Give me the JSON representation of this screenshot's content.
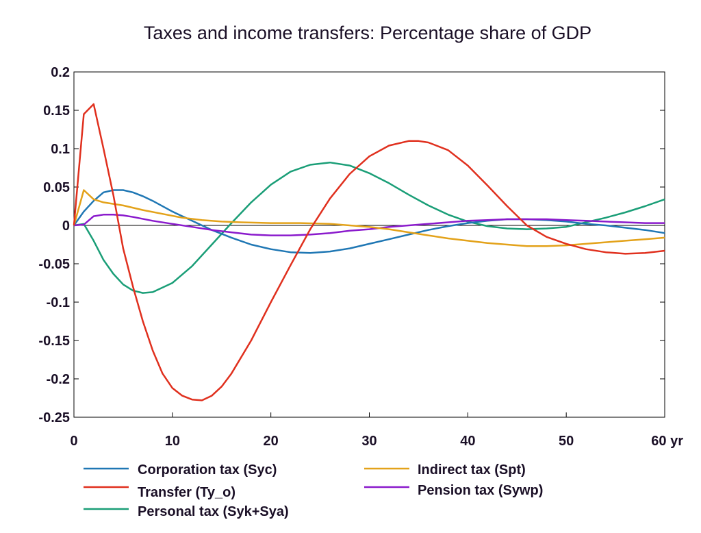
{
  "chart_data": {
    "type": "line",
    "title": "Taxes and income transfers: Percentage share of GDP",
    "xlabel": "",
    "ylabel": "",
    "xlim": [
      0,
      60
    ],
    "ylim": [
      -0.25,
      0.2
    ],
    "x_tick_labels": [
      "0",
      "10",
      "20",
      "30",
      "40",
      "50",
      "60 yr"
    ],
    "y_tick_labels": [
      "0.2",
      "0.15",
      "0.1",
      "0.05",
      "0",
      "-0.05",
      "-0.1",
      "-0.15",
      "-0.2",
      "-0.25"
    ],
    "grid": false,
    "legend_position": "bottom",
    "series": [
      {
        "name": "Corporation tax (Syc)",
        "color": "#1f77b4",
        "points": [
          [
            0,
            0
          ],
          [
            1,
            0.018
          ],
          [
            2,
            0.032
          ],
          [
            3,
            0.043
          ],
          [
            4,
            0.046
          ],
          [
            5,
            0.046
          ],
          [
            6,
            0.043
          ],
          [
            7,
            0.038
          ],
          [
            8,
            0.032
          ],
          [
            10,
            0.018
          ],
          [
            12,
            0.006
          ],
          [
            14,
            -0.006
          ],
          [
            16,
            -0.016
          ],
          [
            18,
            -0.025
          ],
          [
            20,
            -0.031
          ],
          [
            22,
            -0.035
          ],
          [
            24,
            -0.036
          ],
          [
            26,
            -0.034
          ],
          [
            28,
            -0.03
          ],
          [
            30,
            -0.024
          ],
          [
            32,
            -0.018
          ],
          [
            34,
            -0.012
          ],
          [
            36,
            -0.006
          ],
          [
            38,
            -0.001
          ],
          [
            40,
            0.003
          ],
          [
            42,
            0.006
          ],
          [
            44,
            0.008
          ],
          [
            46,
            0.008
          ],
          [
            48,
            0.007
          ],
          [
            50,
            0.005
          ],
          [
            52,
            0.002
          ],
          [
            54,
            0.0
          ],
          [
            56,
            -0.003
          ],
          [
            58,
            -0.006
          ],
          [
            60,
            -0.01
          ]
        ]
      },
      {
        "name": "Transfer (Ty_o)",
        "color": "#e0301e",
        "points": [
          [
            0,
            0
          ],
          [
            1,
            0.145
          ],
          [
            2,
            0.158
          ],
          [
            3,
            0.1
          ],
          [
            4,
            0.04
          ],
          [
            5,
            -0.03
          ],
          [
            6,
            -0.08
          ],
          [
            7,
            -0.125
          ],
          [
            8,
            -0.163
          ],
          [
            9,
            -0.193
          ],
          [
            10,
            -0.212
          ],
          [
            11,
            -0.222
          ],
          [
            12,
            -0.227
          ],
          [
            13,
            -0.228
          ],
          [
            14,
            -0.222
          ],
          [
            15,
            -0.21
          ],
          [
            16,
            -0.193
          ],
          [
            18,
            -0.15
          ],
          [
            20,
            -0.1
          ],
          [
            22,
            -0.052
          ],
          [
            24,
            -0.005
          ],
          [
            26,
            0.035
          ],
          [
            28,
            0.067
          ],
          [
            30,
            0.09
          ],
          [
            32,
            0.104
          ],
          [
            34,
            0.11
          ],
          [
            35,
            0.11
          ],
          [
            36,
            0.108
          ],
          [
            38,
            0.098
          ],
          [
            40,
            0.078
          ],
          [
            42,
            0.052
          ],
          [
            44,
            0.025
          ],
          [
            46,
            0.0
          ],
          [
            48,
            -0.015
          ],
          [
            50,
            -0.024
          ],
          [
            52,
            -0.031
          ],
          [
            54,
            -0.035
          ],
          [
            56,
            -0.037
          ],
          [
            58,
            -0.036
          ],
          [
            60,
            -0.033
          ]
        ]
      },
      {
        "name": "Personal tax (Syk+Sya)",
        "color": "#1a9e77",
        "points": [
          [
            0,
            0
          ],
          [
            1,
            0.002
          ],
          [
            2,
            -0.02
          ],
          [
            3,
            -0.045
          ],
          [
            4,
            -0.063
          ],
          [
            5,
            -0.077
          ],
          [
            6,
            -0.085
          ],
          [
            7,
            -0.088
          ],
          [
            8,
            -0.087
          ],
          [
            10,
            -0.075
          ],
          [
            12,
            -0.053
          ],
          [
            14,
            -0.025
          ],
          [
            16,
            0.003
          ],
          [
            18,
            0.03
          ],
          [
            20,
            0.053
          ],
          [
            22,
            0.07
          ],
          [
            24,
            0.079
          ],
          [
            26,
            0.082
          ],
          [
            28,
            0.078
          ],
          [
            30,
            0.068
          ],
          [
            32,
            0.055
          ],
          [
            34,
            0.04
          ],
          [
            36,
            0.026
          ],
          [
            38,
            0.014
          ],
          [
            40,
            0.005
          ],
          [
            42,
            -0.001
          ],
          [
            44,
            -0.004
          ],
          [
            46,
            -0.005
          ],
          [
            48,
            -0.004
          ],
          [
            50,
            -0.002
          ],
          [
            52,
            0.004
          ],
          [
            54,
            0.01
          ],
          [
            56,
            0.017
          ],
          [
            58,
            0.025
          ],
          [
            60,
            0.034
          ]
        ]
      },
      {
        "name": "Indirect tax (Spt)",
        "color": "#e3a21a",
        "points": [
          [
            0,
            0
          ],
          [
            1,
            0.046
          ],
          [
            2,
            0.034
          ],
          [
            3,
            0.03
          ],
          [
            5,
            0.026
          ],
          [
            7,
            0.02
          ],
          [
            9,
            0.015
          ],
          [
            11,
            0.01
          ],
          [
            13,
            0.007
          ],
          [
            15,
            0.005
          ],
          [
            17,
            0.004
          ],
          [
            20,
            0.003
          ],
          [
            23,
            0.003
          ],
          [
            26,
            0.002
          ],
          [
            28,
            0.0
          ],
          [
            30,
            -0.002
          ],
          [
            32,
            -0.005
          ],
          [
            34,
            -0.009
          ],
          [
            36,
            -0.013
          ],
          [
            38,
            -0.017
          ],
          [
            40,
            -0.02
          ],
          [
            42,
            -0.023
          ],
          [
            44,
            -0.025
          ],
          [
            46,
            -0.027
          ],
          [
            48,
            -0.027
          ],
          [
            50,
            -0.026
          ],
          [
            52,
            -0.024
          ],
          [
            54,
            -0.022
          ],
          [
            56,
            -0.02
          ],
          [
            58,
            -0.018
          ],
          [
            60,
            -0.016
          ]
        ]
      },
      {
        "name": "Pension tax (Sywp)",
        "color": "#8a1acc",
        "points": [
          [
            0,
            0
          ],
          [
            1,
            0.001
          ],
          [
            2,
            0.012
          ],
          [
            3,
            0.014
          ],
          [
            4,
            0.014
          ],
          [
            5,
            0.013
          ],
          [
            6,
            0.011
          ],
          [
            8,
            0.006
          ],
          [
            10,
            0.002
          ],
          [
            12,
            -0.002
          ],
          [
            14,
            -0.006
          ],
          [
            16,
            -0.009
          ],
          [
            18,
            -0.012
          ],
          [
            20,
            -0.013
          ],
          [
            22,
            -0.013
          ],
          [
            24,
            -0.012
          ],
          [
            26,
            -0.01
          ],
          [
            28,
            -0.007
          ],
          [
            30,
            -0.005
          ],
          [
            32,
            -0.002
          ],
          [
            34,
            0.0
          ],
          [
            36,
            0.002
          ],
          [
            38,
            0.004
          ],
          [
            40,
            0.006
          ],
          [
            42,
            0.007
          ],
          [
            44,
            0.008
          ],
          [
            46,
            0.008
          ],
          [
            48,
            0.008
          ],
          [
            50,
            0.007
          ],
          [
            52,
            0.006
          ],
          [
            54,
            0.005
          ],
          [
            56,
            0.004
          ],
          [
            58,
            0.003
          ],
          [
            60,
            0.003
          ]
        ]
      }
    ]
  }
}
